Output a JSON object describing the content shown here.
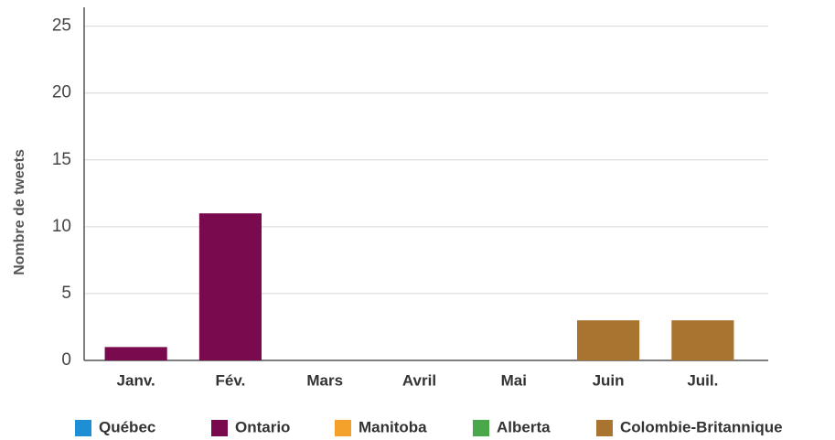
{
  "chart_data": {
    "type": "bar",
    "stacked": true,
    "y_label": "Nombre de tweets",
    "categories": [
      "Janv.",
      "Fév.",
      "Mars",
      "Avril",
      "Mai",
      "Juin",
      "Juil."
    ],
    "series": [
      {
        "name": "Québec",
        "color": "#1e8fd5",
        "values": [
          0,
          0,
          0,
          0,
          0,
          0,
          0
        ]
      },
      {
        "name": "Ontario",
        "color": "#7a0a4e",
        "values": [
          1,
          11,
          0,
          0,
          0,
          0,
          0
        ]
      },
      {
        "name": "Manitoba",
        "color": "#f4a12b",
        "values": [
          0,
          0,
          0,
          0,
          0,
          0,
          0
        ]
      },
      {
        "name": "Alberta",
        "color": "#4aa84a",
        "values": [
          0,
          0,
          0,
          0,
          0,
          0,
          0
        ]
      },
      {
        "name": "Colombie-Britannique",
        "color": "#a9742f",
        "values": [
          0,
          0,
          0,
          0,
          0,
          3,
          3
        ]
      }
    ],
    "ylim": [
      0,
      26
    ],
    "yticks": [
      0,
      5,
      10,
      15,
      20,
      25
    ],
    "grid": true,
    "legend": "bottom"
  }
}
